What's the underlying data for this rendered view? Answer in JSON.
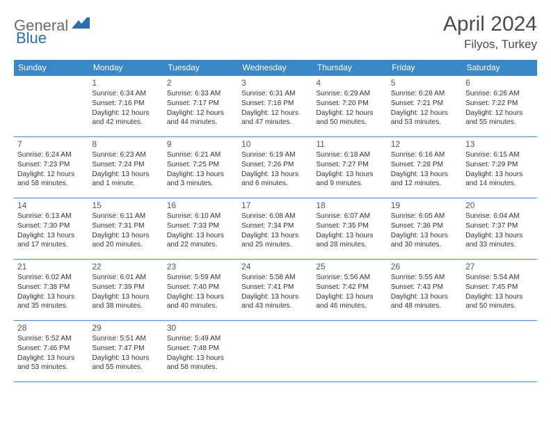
{
  "brand": {
    "word1": "General",
    "word2": "Blue",
    "colors": {
      "gray": "#6b6b6b",
      "blue": "#2a6db8",
      "accent_nav": "#2b6fb3"
    }
  },
  "title": "April 2024",
  "location": "Filyos, Turkey",
  "theme": {
    "header_bg": "#3a87c8",
    "header_text": "#ffffff",
    "divider": "#3a87c8",
    "text": "#333333",
    "title_color": "#4a4a4a",
    "body_font_size": 10.2,
    "daynum_font_size": 12,
    "title_font_size": 30,
    "location_font_size": 17,
    "header_font_size": 12
  },
  "day_headers": [
    "Sunday",
    "Monday",
    "Tuesday",
    "Wednesday",
    "Thursday",
    "Friday",
    "Saturday"
  ],
  "weeks": [
    [
      null,
      {
        "d": "1",
        "sr": "6:34 AM",
        "ss": "7:16 PM",
        "dl": "12 hours and 42 minutes."
      },
      {
        "d": "2",
        "sr": "6:33 AM",
        "ss": "7:17 PM",
        "dl": "12 hours and 44 minutes."
      },
      {
        "d": "3",
        "sr": "6:31 AM",
        "ss": "7:18 PM",
        "dl": "12 hours and 47 minutes."
      },
      {
        "d": "4",
        "sr": "6:29 AM",
        "ss": "7:20 PM",
        "dl": "12 hours and 50 minutes."
      },
      {
        "d": "5",
        "sr": "6:28 AM",
        "ss": "7:21 PM",
        "dl": "12 hours and 53 minutes."
      },
      {
        "d": "6",
        "sr": "6:26 AM",
        "ss": "7:22 PM",
        "dl": "12 hours and 55 minutes."
      }
    ],
    [
      {
        "d": "7",
        "sr": "6:24 AM",
        "ss": "7:23 PM",
        "dl": "12 hours and 58 minutes."
      },
      {
        "d": "8",
        "sr": "6:23 AM",
        "ss": "7:24 PM",
        "dl": "13 hours and 1 minute."
      },
      {
        "d": "9",
        "sr": "6:21 AM",
        "ss": "7:25 PM",
        "dl": "13 hours and 3 minutes."
      },
      {
        "d": "10",
        "sr": "6:19 AM",
        "ss": "7:26 PM",
        "dl": "13 hours and 6 minutes."
      },
      {
        "d": "11",
        "sr": "6:18 AM",
        "ss": "7:27 PM",
        "dl": "13 hours and 9 minutes."
      },
      {
        "d": "12",
        "sr": "6:16 AM",
        "ss": "7:28 PM",
        "dl": "13 hours and 12 minutes."
      },
      {
        "d": "13",
        "sr": "6:15 AM",
        "ss": "7:29 PM",
        "dl": "13 hours and 14 minutes."
      }
    ],
    [
      {
        "d": "14",
        "sr": "6:13 AM",
        "ss": "7:30 PM",
        "dl": "13 hours and 17 minutes."
      },
      {
        "d": "15",
        "sr": "6:11 AM",
        "ss": "7:31 PM",
        "dl": "13 hours and 20 minutes."
      },
      {
        "d": "16",
        "sr": "6:10 AM",
        "ss": "7:33 PM",
        "dl": "13 hours and 22 minutes."
      },
      {
        "d": "17",
        "sr": "6:08 AM",
        "ss": "7:34 PM",
        "dl": "13 hours and 25 minutes."
      },
      {
        "d": "18",
        "sr": "6:07 AM",
        "ss": "7:35 PM",
        "dl": "13 hours and 28 minutes."
      },
      {
        "d": "19",
        "sr": "6:05 AM",
        "ss": "7:36 PM",
        "dl": "13 hours and 30 minutes."
      },
      {
        "d": "20",
        "sr": "6:04 AM",
        "ss": "7:37 PM",
        "dl": "13 hours and 33 minutes."
      }
    ],
    [
      {
        "d": "21",
        "sr": "6:02 AM",
        "ss": "7:38 PM",
        "dl": "13 hours and 35 minutes."
      },
      {
        "d": "22",
        "sr": "6:01 AM",
        "ss": "7:39 PM",
        "dl": "13 hours and 38 minutes."
      },
      {
        "d": "23",
        "sr": "5:59 AM",
        "ss": "7:40 PM",
        "dl": "13 hours and 40 minutes."
      },
      {
        "d": "24",
        "sr": "5:58 AM",
        "ss": "7:41 PM",
        "dl": "13 hours and 43 minutes."
      },
      {
        "d": "25",
        "sr": "5:56 AM",
        "ss": "7:42 PM",
        "dl": "13 hours and 46 minutes."
      },
      {
        "d": "26",
        "sr": "5:55 AM",
        "ss": "7:43 PM",
        "dl": "13 hours and 48 minutes."
      },
      {
        "d": "27",
        "sr": "5:54 AM",
        "ss": "7:45 PM",
        "dl": "13 hours and 50 minutes."
      }
    ],
    [
      {
        "d": "28",
        "sr": "5:52 AM",
        "ss": "7:46 PM",
        "dl": "13 hours and 53 minutes."
      },
      {
        "d": "29",
        "sr": "5:51 AM",
        "ss": "7:47 PM",
        "dl": "13 hours and 55 minutes."
      },
      {
        "d": "30",
        "sr": "5:49 AM",
        "ss": "7:48 PM",
        "dl": "13 hours and 58 minutes."
      },
      null,
      null,
      null,
      null
    ]
  ],
  "labels": {
    "sunrise": "Sunrise:",
    "sunset": "Sunset:",
    "daylight": "Daylight:"
  }
}
